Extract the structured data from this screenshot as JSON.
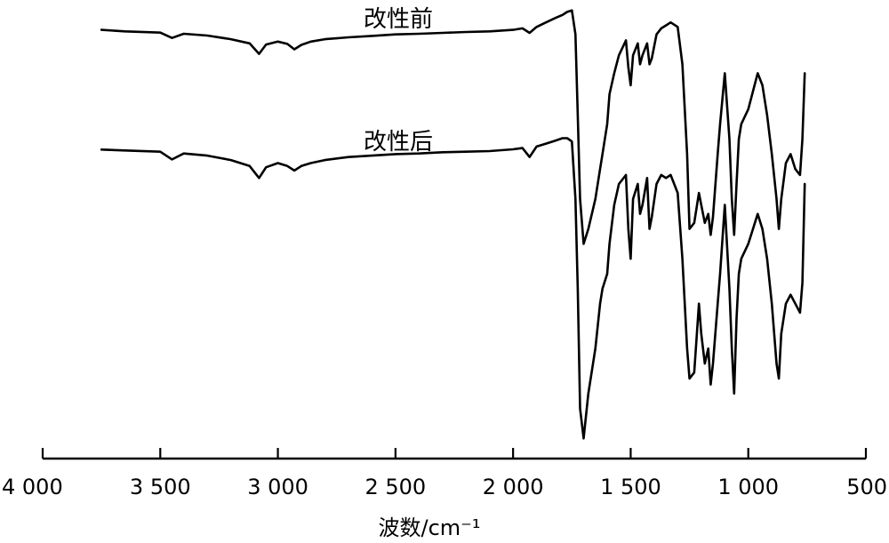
{
  "chart_data": {
    "type": "line",
    "xlabel": "波数/cm⁻¹",
    "ylabel": "",
    "xlim": [
      4000,
      500
    ],
    "x_reversed": true,
    "y_axis_shown": false,
    "grid": false,
    "xticks": [
      4000,
      3500,
      3000,
      2500,
      2000,
      1500,
      1000,
      500
    ],
    "xtick_labels": [
      "4 000",
      "3 500",
      "3 000",
      "2 500",
      "2 000",
      "1 500",
      "1 000",
      "500"
    ],
    "series": [
      {
        "name": "改性前",
        "x": [
          3750,
          3650,
          3500,
          3450,
          3400,
          3300,
          3200,
          3120,
          3080,
          3050,
          3000,
          2960,
          2930,
          2900,
          2860,
          2800,
          2700,
          2600,
          2500,
          2400,
          2300,
          2200,
          2100,
          2000,
          1960,
          1930,
          1900,
          1860,
          1820,
          1790,
          1770,
          1750,
          1735,
          1725,
          1715,
          1700,
          1680,
          1650,
          1630,
          1620,
          1600,
          1590,
          1570,
          1550,
          1520,
          1510,
          1500,
          1490,
          1470,
          1460,
          1450,
          1430,
          1420,
          1410,
          1390,
          1370,
          1350,
          1330,
          1300,
          1280,
          1260,
          1250,
          1230,
          1210,
          1200,
          1185,
          1170,
          1160,
          1150,
          1130,
          1120,
          1100,
          1080,
          1070,
          1060,
          1050,
          1040,
          1030,
          1000,
          980,
          960,
          940,
          920,
          900,
          880,
          870,
          860,
          840,
          820,
          800,
          780,
          770,
          760
        ],
        "y": [
          96.5,
          96.0,
          95.6,
          93.8,
          95.2,
          94.6,
          93.4,
          92.0,
          88.5,
          91.6,
          92.6,
          91.8,
          90.0,
          91.5,
          92.6,
          93.4,
          94.0,
          94.5,
          95.0,
          95.2,
          95.5,
          95.8,
          96.0,
          96.5,
          97.0,
          95.5,
          97.5,
          99.0,
          100.5,
          101.5,
          102.5,
          103.0,
          95.0,
          68.0,
          40.0,
          25.0,
          30.0,
          40.0,
          50.0,
          55.0,
          65.0,
          75.0,
          82.0,
          88.0,
          93.0,
          84.0,
          78.0,
          88.0,
          92.0,
          85.0,
          88.0,
          92.0,
          85.0,
          87.0,
          95.0,
          97.0,
          98.0,
          99.0,
          97.5,
          85.0,
          55.0,
          30.0,
          32.0,
          42.0,
          38.0,
          32.0,
          35.0,
          28.0,
          34.0,
          55.0,
          65.0,
          82.0,
          60.0,
          40.0,
          28.0,
          45.0,
          60.0,
          65.0,
          70.0,
          76.0,
          82.0,
          78.0,
          68.0,
          55.0,
          40.0,
          30.0,
          40.0,
          52.0,
          55.0,
          50.0,
          48.0,
          60.0,
          82.0
        ]
      },
      {
        "name": "改性后",
        "x": [
          3750,
          3650,
          3500,
          3450,
          3400,
          3300,
          3200,
          3120,
          3080,
          3050,
          3000,
          2960,
          2930,
          2900,
          2860,
          2800,
          2700,
          2600,
          2500,
          2400,
          2300,
          2200,
          2100,
          2000,
          1960,
          1930,
          1900,
          1860,
          1820,
          1790,
          1770,
          1750,
          1735,
          1725,
          1715,
          1700,
          1680,
          1650,
          1630,
          1620,
          1600,
          1590,
          1570,
          1550,
          1520,
          1510,
          1500,
          1490,
          1470,
          1460,
          1450,
          1430,
          1420,
          1410,
          1390,
          1370,
          1350,
          1330,
          1300,
          1280,
          1260,
          1250,
          1230,
          1210,
          1200,
          1185,
          1170,
          1160,
          1150,
          1130,
          1120,
          1100,
          1080,
          1070,
          1060,
          1050,
          1040,
          1030,
          1000,
          980,
          960,
          940,
          920,
          900,
          880,
          870,
          860,
          840,
          820,
          800,
          780,
          770,
          760
        ],
        "y": [
          56.5,
          56.2,
          55.8,
          53.2,
          55.2,
          54.5,
          53.0,
          51.0,
          47.0,
          50.6,
          52.0,
          51.0,
          49.5,
          51.0,
          52.0,
          53.0,
          54.0,
          54.5,
          55.0,
          55.2,
          55.6,
          55.8,
          56.0,
          56.6,
          57.0,
          54.0,
          57.5,
          58.5,
          59.5,
          60.3,
          60.3,
          59.2,
          40.0,
          10.0,
          -30.0,
          -40.0,
          -25.0,
          -10.0,
          5.0,
          10.0,
          15.0,
          25.0,
          38.0,
          45.0,
          48.0,
          30.0,
          20.0,
          40.0,
          45.0,
          35.0,
          38.0,
          47.0,
          30.0,
          34.0,
          45.0,
          48.0,
          47.0,
          48.0,
          42.0,
          20.0,
          -10.0,
          -20.0,
          -18.0,
          5.0,
          -5.0,
          -15.0,
          -10.0,
          -22.0,
          -15.0,
          5.0,
          15.0,
          38.0,
          10.0,
          -10.0,
          -25.0,
          0.0,
          15.0,
          20.0,
          25.0,
          30.0,
          35.0,
          30.0,
          20.0,
          5.0,
          -15.0,
          -20.0,
          -5.0,
          5.0,
          8.0,
          5.0,
          2.0,
          12.0,
          45.0
        ]
      }
    ],
    "annotations": [
      "改性前",
      "改性后"
    ]
  }
}
